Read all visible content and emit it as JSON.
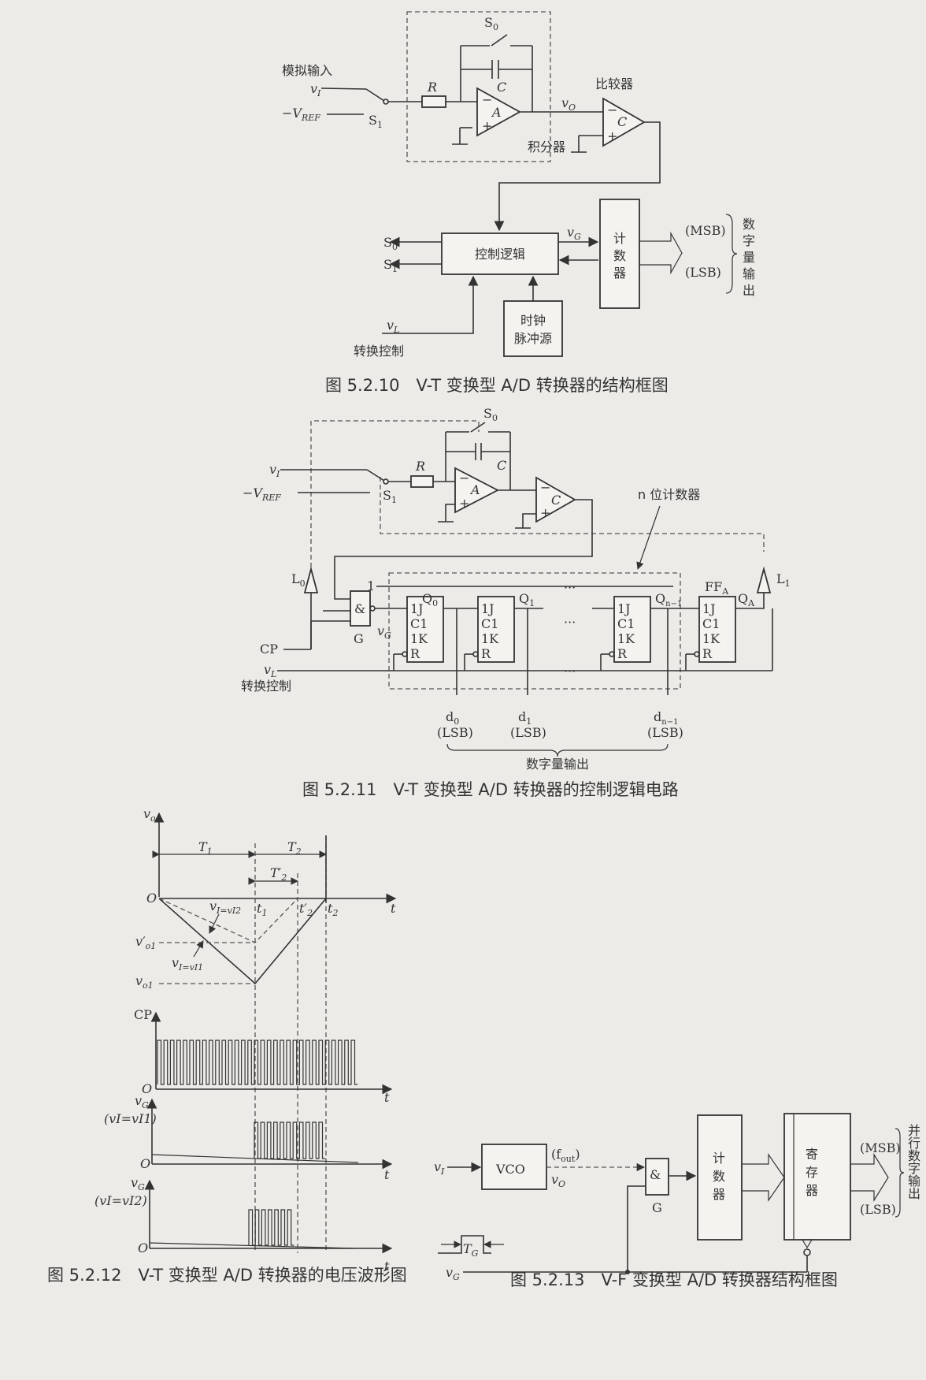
{
  "fig10": {
    "caption": "图 5.2.10　V-T 变换型 A/D 转换器的结构框图",
    "analog_input": "模拟输入",
    "vI": "v",
    "vI_sub": "I",
    "vref": "−V",
    "vref_sub": "REF",
    "S1": "S",
    "S1_sub": "1",
    "S0": "S",
    "S0_sub": "0",
    "R": "R",
    "C": "C",
    "A": "A",
    "integrator": "积分器",
    "vO": "v",
    "vO_sub": "O",
    "comparator": "比较器",
    "comp_C": "C",
    "control_logic": "控制逻辑",
    "vG": "v",
    "vG_sub": "G",
    "counter_lines": [
      "计",
      "数",
      "器"
    ],
    "clock_lines": [
      "时钟",
      "脉冲源"
    ],
    "vL": "v",
    "vL_sub": "L",
    "conv_control": "转换控制",
    "msb": "(MSB)",
    "lsb": "(LSB)",
    "digital_out_lines": [
      "数",
      "字",
      "量",
      "输",
      "出"
    ]
  },
  "fig11": {
    "caption": "图 5.2.11　V-T 变换型 A/D 转换器的控制逻辑电路",
    "counter_label": "n 位计数器",
    "L0": "L",
    "L0_sub": "0",
    "L1": "L",
    "L1_sub": "1",
    "FFA": "FF",
    "FFA_sub": "A",
    "QA": "Q",
    "QA_sub": "A",
    "one": "1",
    "and": "&",
    "G": "G",
    "CP": "CP",
    "vL": "v",
    "vL_sub": "L",
    "conv_control": "转换控制",
    "ff_pins": [
      "1J",
      "C1",
      "1K",
      "R"
    ],
    "Q0": "Q",
    "Q0_sub": "0",
    "Q1": "Q",
    "Q1_sub": "1",
    "Qn1": "Q",
    "Qn1_sub": "n−1",
    "ellipsis": "···",
    "outputs": [
      {
        "name": "d",
        "sub": "0",
        "tag": "(LSB)"
      },
      {
        "name": "d",
        "sub": "1",
        "tag": "(LSB)"
      },
      {
        "name": "d",
        "sub": "n−1",
        "tag": "(LSB)"
      }
    ],
    "digital_out": "数字量输出"
  },
  "fig12": {
    "caption": "图 5.2.12　V-T 变换型 A/D 转换器的电压波形图",
    "vo_axis": "v",
    "vo_axis_sub": "o",
    "origin": "O",
    "t": "t",
    "T1": "T",
    "T1_sub": "1",
    "T2": "T",
    "T2_sub": "2",
    "T2p": "T′",
    "T2p_sub": "2",
    "t1": "t",
    "t1_sub": "1",
    "t2p": "t′",
    "t2p_sub": "2",
    "t2": "t",
    "t2_sub": "2",
    "vI_vI2": "v",
    "vI_vI2_rest": "I=vI2",
    "vI_vI1_rest": "I=vI1",
    "vo1p": "v′",
    "vo1p_sub": "o1",
    "vo1": "v",
    "vo1_sub": "o1",
    "CP": "CP",
    "vG1": "v",
    "vG1_sub": "G",
    "cond1": "(vI=vI1)",
    "vG2": "v",
    "vG2_sub": "G",
    "cond2": "(vI=vI2)"
  },
  "fig13": {
    "caption": "图 5.2.13　V-F 变换型 A/D 转换器结构框图",
    "vI": "v",
    "vI_sub": "I",
    "vco": "VCO",
    "fout": "(f",
    "fout_sub": "out",
    "fout_close": ")",
    "vO": "v",
    "vO_sub": "O",
    "and": "&",
    "G": "G",
    "counter_lines": [
      "计",
      "数",
      "器"
    ],
    "register_lines": [
      "寄",
      "存",
      "器"
    ],
    "msb": "(MSB)",
    "lsb": "(LSB)",
    "parallel_out_lines": [
      "并",
      "行",
      "数",
      "字",
      "输",
      "出"
    ],
    "TG": "T",
    "TG_sub": "G",
    "vG": "v",
    "vG_sub": "G"
  }
}
